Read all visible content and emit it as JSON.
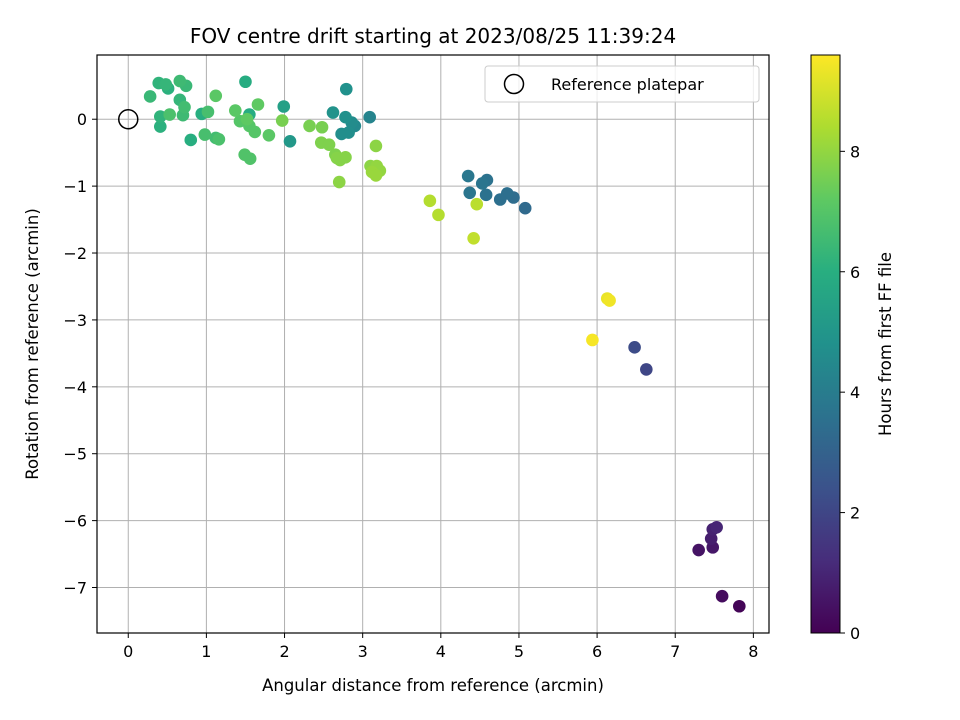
{
  "chart_data": {
    "type": "scatter",
    "title": "FOV centre drift starting at 2023/08/25 11:39:24",
    "xlabel": "Angular distance from reference (arcmin)",
    "ylabel": "Rotation from reference (arcmin)",
    "xlim": [
      -0.4,
      8.2
    ],
    "ylim": [
      -7.68,
      0.96
    ],
    "x_ticks": [
      0,
      1,
      2,
      3,
      4,
      5,
      6,
      7,
      8
    ],
    "y_ticks": [
      0,
      -1,
      -2,
      -3,
      -4,
      -5,
      -6,
      -7
    ],
    "x_tick_labels": [
      "0",
      "1",
      "2",
      "3",
      "4",
      "5",
      "6",
      "7",
      "8"
    ],
    "y_tick_labels": [
      "0",
      "−1",
      "−2",
      "−3",
      "−4",
      "−5",
      "−6",
      "−7"
    ],
    "grid": true,
    "legend": {
      "placement": "top-right",
      "entries": [
        "Reference platepar"
      ]
    },
    "reference_point": {
      "x": 0,
      "y": 0,
      "label": "Reference platepar",
      "marker": "open-circle"
    },
    "colorbar": {
      "label": "Hours from first FF file",
      "range": [
        0,
        9.6
      ],
      "ticks": [
        0,
        2,
        4,
        6,
        8
      ],
      "tick_labels": [
        "0",
        "2",
        "4",
        "6",
        "8"
      ],
      "colormap": "viridis"
    },
    "points": [
      {
        "x": 7.82,
        "y": -7.28,
        "h": 0.1
      },
      {
        "x": 7.6,
        "y": -7.13,
        "h": 0.3
      },
      {
        "x": 7.3,
        "y": -6.44,
        "h": 0.5
      },
      {
        "x": 7.48,
        "y": -6.4,
        "h": 0.6
      },
      {
        "x": 7.46,
        "y": -6.27,
        "h": 0.8
      },
      {
        "x": 7.48,
        "y": -6.13,
        "h": 0.9
      },
      {
        "x": 7.53,
        "y": -6.1,
        "h": 1.0
      },
      {
        "x": 6.63,
        "y": -3.74,
        "h": 2.0
      },
      {
        "x": 6.48,
        "y": -3.41,
        "h": 2.2
      },
      {
        "x": 5.08,
        "y": -1.33,
        "h": 3.3
      },
      {
        "x": 4.93,
        "y": -1.17,
        "h": 3.4
      },
      {
        "x": 4.85,
        "y": -1.11,
        "h": 3.5
      },
      {
        "x": 4.76,
        "y": -1.2,
        "h": 3.5
      },
      {
        "x": 4.58,
        "y": -1.13,
        "h": 3.6
      },
      {
        "x": 4.59,
        "y": -0.91,
        "h": 3.6
      },
      {
        "x": 4.53,
        "y": -0.96,
        "h": 3.7
      },
      {
        "x": 4.37,
        "y": -1.1,
        "h": 3.7
      },
      {
        "x": 4.35,
        "y": -0.85,
        "h": 3.8
      },
      {
        "x": 3.09,
        "y": 0.03,
        "h": 4.3
      },
      {
        "x": 2.9,
        "y": -0.1,
        "h": 4.5
      },
      {
        "x": 2.86,
        "y": -0.05,
        "h": 4.6
      },
      {
        "x": 2.82,
        "y": -0.2,
        "h": 4.7
      },
      {
        "x": 2.73,
        "y": -0.22,
        "h": 4.7
      },
      {
        "x": 2.78,
        "y": 0.03,
        "h": 4.8
      },
      {
        "x": 2.79,
        "y": 0.45,
        "h": 4.8
      },
      {
        "x": 2.62,
        "y": 0.1,
        "h": 4.9
      },
      {
        "x": 2.07,
        "y": -0.33,
        "h": 5.1
      },
      {
        "x": 1.99,
        "y": 0.19,
        "h": 5.4
      },
      {
        "x": 1.5,
        "y": 0.56,
        "h": 5.9
      },
      {
        "x": 1.55,
        "y": 0.07,
        "h": 5.9
      },
      {
        "x": 0.94,
        "y": 0.08,
        "h": 6.0
      },
      {
        "x": 0.8,
        "y": -0.31,
        "h": 6.0
      },
      {
        "x": 0.51,
        "y": 0.46,
        "h": 6.1
      },
      {
        "x": 0.41,
        "y": -0.11,
        "h": 6.1
      },
      {
        "x": 0.41,
        "y": 0.04,
        "h": 6.2
      },
      {
        "x": 0.39,
        "y": 0.54,
        "h": 6.2
      },
      {
        "x": 0.48,
        "y": 0.52,
        "h": 6.3
      },
      {
        "x": 0.66,
        "y": 0.29,
        "h": 6.3
      },
      {
        "x": 0.74,
        "y": 0.5,
        "h": 6.4
      },
      {
        "x": 0.28,
        "y": 0.34,
        "h": 6.4
      },
      {
        "x": 0.66,
        "y": 0.57,
        "h": 6.5
      },
      {
        "x": 0.7,
        "y": 0.06,
        "h": 6.5
      },
      {
        "x": 0.72,
        "y": 0.18,
        "h": 6.6
      },
      {
        "x": 1.12,
        "y": -0.28,
        "h": 6.6
      },
      {
        "x": 0.98,
        "y": -0.23,
        "h": 6.7
      },
      {
        "x": 1.02,
        "y": 0.11,
        "h": 6.7
      },
      {
        "x": 1.16,
        "y": -0.3,
        "h": 6.8
      },
      {
        "x": 0.53,
        "y": 0.07,
        "h": 6.8
      },
      {
        "x": 1.49,
        "y": -0.53,
        "h": 6.9
      },
      {
        "x": 1.56,
        "y": -0.59,
        "h": 6.9
      },
      {
        "x": 1.43,
        "y": -0.03,
        "h": 7.0
      },
      {
        "x": 1.55,
        "y": -0.1,
        "h": 7.0
      },
      {
        "x": 1.62,
        "y": -0.19,
        "h": 7.0
      },
      {
        "x": 1.8,
        "y": -0.24,
        "h": 7.1
      },
      {
        "x": 1.12,
        "y": 0.35,
        "h": 7.1
      },
      {
        "x": 1.37,
        "y": 0.13,
        "h": 7.1
      },
      {
        "x": 1.66,
        "y": 0.22,
        "h": 7.2
      },
      {
        "x": 1.52,
        "y": 0.0,
        "h": 7.2
      },
      {
        "x": 1.97,
        "y": -0.02,
        "h": 7.6
      },
      {
        "x": 2.32,
        "y": -0.1,
        "h": 7.6
      },
      {
        "x": 2.48,
        "y": -0.12,
        "h": 7.6
      },
      {
        "x": 2.47,
        "y": -0.35,
        "h": 7.7
      },
      {
        "x": 2.57,
        "y": -0.38,
        "h": 7.7
      },
      {
        "x": 2.65,
        "y": -0.53,
        "h": 7.7
      },
      {
        "x": 2.67,
        "y": -0.58,
        "h": 7.8
      },
      {
        "x": 2.71,
        "y": -0.61,
        "h": 7.8
      },
      {
        "x": 2.78,
        "y": -0.57,
        "h": 7.8
      },
      {
        "x": 2.7,
        "y": -0.94,
        "h": 7.9
      },
      {
        "x": 3.17,
        "y": -0.4,
        "h": 7.9
      },
      {
        "x": 3.1,
        "y": -0.7,
        "h": 7.9
      },
      {
        "x": 3.15,
        "y": -0.76,
        "h": 8.0
      },
      {
        "x": 3.18,
        "y": -0.7,
        "h": 8.0
      },
      {
        "x": 3.22,
        "y": -0.77,
        "h": 8.0
      },
      {
        "x": 3.12,
        "y": -0.79,
        "h": 8.1
      },
      {
        "x": 3.17,
        "y": -0.84,
        "h": 8.1
      },
      {
        "x": 3.86,
        "y": -1.22,
        "h": 8.5
      },
      {
        "x": 3.97,
        "y": -1.43,
        "h": 8.5
      },
      {
        "x": 4.46,
        "y": -1.27,
        "h": 8.6
      },
      {
        "x": 4.42,
        "y": -1.78,
        "h": 8.7
      },
      {
        "x": 6.13,
        "y": -2.68,
        "h": 9.3
      },
      {
        "x": 6.16,
        "y": -2.71,
        "h": 9.4
      },
      {
        "x": 5.94,
        "y": -3.3,
        "h": 9.5
      }
    ]
  }
}
